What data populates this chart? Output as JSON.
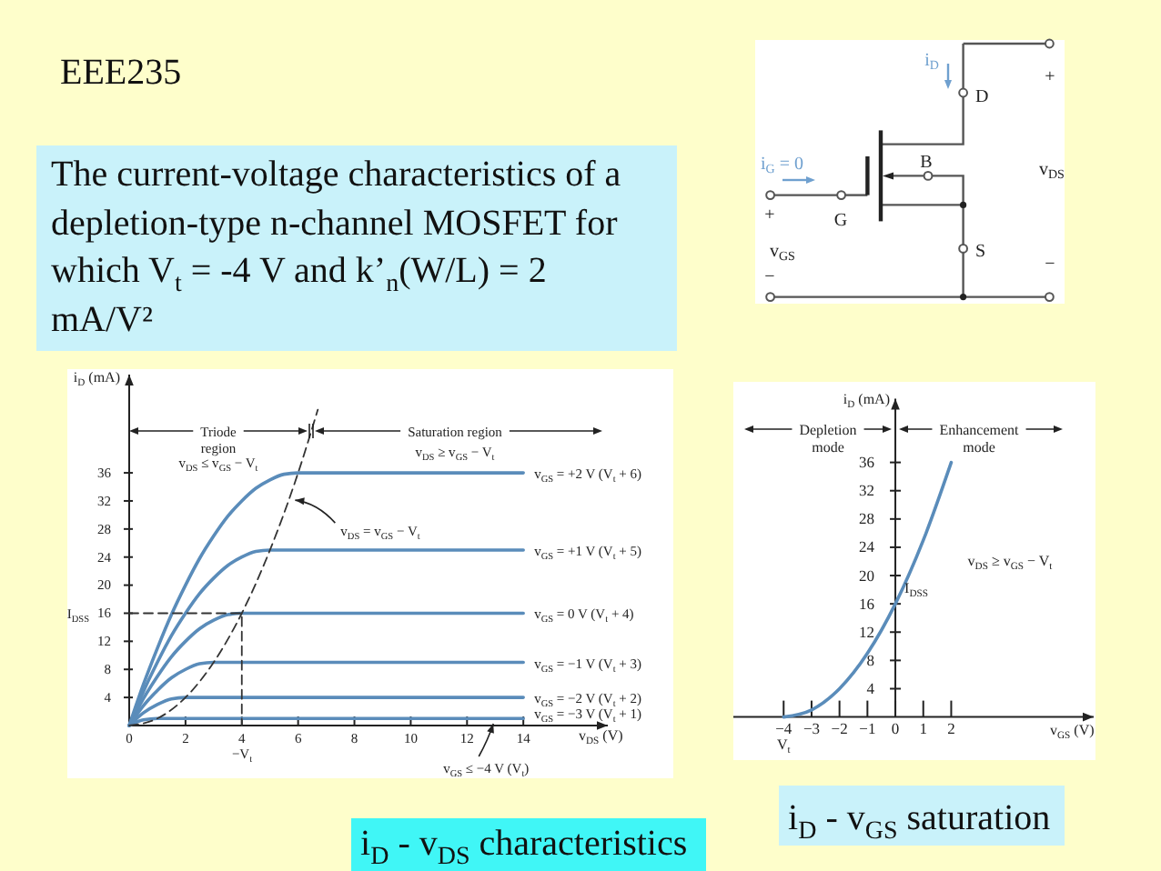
{
  "chart_data": [
    {
      "type": "other",
      "title": "EEE235",
      "subtitle": "The current-voltage characteristics of a depletion-type n-channel MOSFET for which V$_{t}$ = -4 V and k’$_{n}$(W/L) = 2 mA/V²",
      "annotations": [
        "i$_{D}$",
        "D",
        "+",
        "v$_{DS}$",
        "−",
        "i$_{G}$ = 0",
        "B",
        "G",
        "+",
        "v$_{GS}$",
        "S",
        "−"
      ]
    },
    {
      "type": "line",
      "title": "i$_{D}$ - v$_{DS}$ characteristics",
      "xlabel": "v$_{DS}$ (V)",
      "ylabel": "i$_{D}$ (mA)",
      "xlim": [
        0,
        17
      ],
      "ylim": [
        0,
        50
      ],
      "xticks": [
        0,
        2,
        4,
        6,
        8,
        10,
        12,
        14
      ],
      "yticks": [
        4,
        8,
        12,
        16,
        20,
        24,
        28,
        32,
        36
      ],
      "series": [
        {
          "name": "v$_{GS}$ = +2 V (V$_{t}$ + 6)",
          "color": "#5a8cba",
          "x": [
            0,
            0.5,
            1,
            1.5,
            2,
            2.5,
            3,
            3.5,
            4,
            4.5,
            5,
            5.5,
            6,
            14
          ],
          "values": [
            0,
            5.8,
            11,
            15.8,
            20,
            23.8,
            27,
            29.8,
            32,
            33.8,
            35,
            35.8,
            36,
            36
          ]
        },
        {
          "name": "v$_{GS}$ = +1 V (V$_{t}$ + 5)",
          "color": "#5a8cba",
          "x": [
            0,
            0.5,
            1,
            1.5,
            2,
            2.5,
            3,
            3.5,
            4,
            4.5,
            5,
            14
          ],
          "values": [
            0,
            4.8,
            9,
            12.8,
            16,
            18.8,
            21,
            22.8,
            24,
            24.8,
            25,
            25
          ]
        },
        {
          "name": "v$_{GS}$ = 0 V (V$_{t}$ + 4)",
          "color": "#5a8cba",
          "x": [
            0,
            0.5,
            1,
            1.5,
            2,
            2.5,
            3,
            3.5,
            4,
            14
          ],
          "values": [
            0,
            3.8,
            7,
            9.8,
            12,
            13.8,
            15,
            15.8,
            16,
            16
          ]
        },
        {
          "name": "v$_{GS}$ = −1 V (V$_{t}$ + 3)",
          "color": "#5a8cba",
          "x": [
            0,
            0.5,
            1,
            1.5,
            2,
            2.5,
            3,
            14
          ],
          "values": [
            0,
            2.8,
            5,
            6.8,
            8,
            8.8,
            9,
            9
          ]
        },
        {
          "name": "v$_{GS}$ = −2 V (V$_{t}$ + 2)",
          "color": "#5a8cba",
          "x": [
            0,
            0.5,
            1,
            1.5,
            2,
            14
          ],
          "values": [
            0,
            1.8,
            3,
            3.8,
            4,
            4
          ]
        },
        {
          "name": "v$_{GS}$ = −3 V (V$_{t}$ + 1)",
          "color": "#5a8cba",
          "x": [
            0,
            0.5,
            1,
            14
          ],
          "values": [
            0,
            0.8,
            1,
            1
          ]
        },
        {
          "color": "#333333",
          "line_style": "dashed",
          "x": [
            0,
            1,
            2,
            3,
            4,
            5,
            6,
            6.7
          ],
          "values": [
            0,
            1,
            4,
            9,
            16,
            25,
            36,
            45
          ]
        },
        {
          "color": "#333333",
          "line_style": "dashed",
          "x": [
            0,
            4,
            4
          ],
          "values": [
            16,
            16,
            0
          ]
        }
      ],
      "annotations": [
        "Triode region",
        "v$_{DS}$ ≤ v$_{GS}$ − V$_{t}$",
        "Saturation region",
        "v$_{DS}$ ≥ v$_{GS}$ − V$_{t}$",
        {
          "text": "v$_{DS}$ = v$_{GS}$ − V$_{t}$",
          "x": 5.7,
          "y": 32.5
        },
        "I$_{DSS}$",
        "−V$_{t}$",
        {
          "text": "v$_{GS}$ ≤ −4 V (V$_{t}$)",
          "x": 13,
          "y": 0
        }
      ]
    },
    {
      "type": "line",
      "title": "i$_{D}$ - v$_{GS}$ saturation",
      "xlabel": "v$_{GS}$ (V)",
      "ylabel": "i$_{D}$ (mA)",
      "xlim": [
        -5.8,
        7.1
      ],
      "ylim": [
        0,
        45
      ],
      "xticks": [
        -4,
        -3,
        -2,
        -1,
        0,
        1,
        2
      ],
      "yticks": [
        4,
        8,
        12,
        16,
        20,
        24,
        28,
        32,
        36
      ],
      "series": [
        {
          "color": "#5a8cba",
          "x": [
            -4,
            -3,
            -2,
            -1,
            0,
            1,
            2
          ],
          "values": [
            0,
            1,
            4,
            9,
            16,
            25,
            36
          ]
        }
      ],
      "annotations": [
        "Depletion mode",
        "Enhancement mode",
        "v$_{DS}$ ≥ v$_{GS}$ − V$_{t}$",
        {
          "text": "I$_{DSS}$",
          "x": 0,
          "y": 16
        },
        "V$_{t}$"
      ]
    }
  ]
}
